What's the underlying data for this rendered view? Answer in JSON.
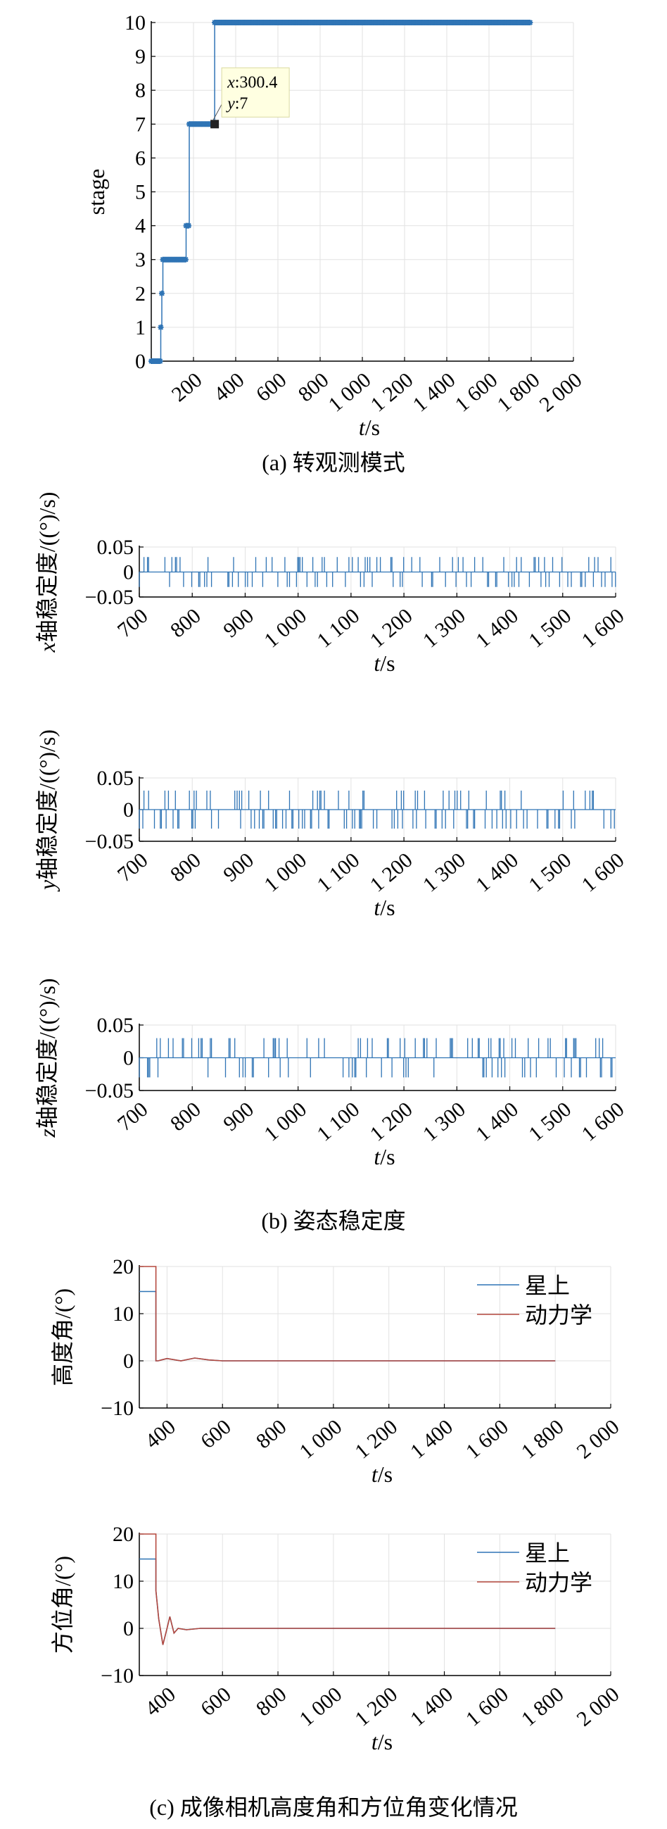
{
  "colors": {
    "blue": "#2f74b5",
    "red": "#b5493f",
    "grid": "#e2e2e2",
    "tooltip_bg": "#ffffe1"
  },
  "chart_data": [
    {
      "id": "stage",
      "type": "line",
      "marker": "asterisk",
      "ylabel": "stage",
      "xlabel": {
        "var": "t",
        "unit": "/s"
      },
      "xlim": [
        0,
        2000
      ],
      "ylim": [
        0,
        10
      ],
      "xticks": [
        "200",
        "400",
        "600",
        "800",
        "1 000",
        "1 200",
        "1 400",
        "1 600",
        "1 800",
        "2 000"
      ],
      "xtick_values": [
        200,
        400,
        600,
        800,
        1000,
        1200,
        1400,
        1600,
        1800,
        2000
      ],
      "yticks": [
        "0",
        "1",
        "2",
        "3",
        "4",
        "5",
        "6",
        "7",
        "8",
        "9",
        "10"
      ],
      "ytick_values": [
        0,
        1,
        2,
        3,
        4,
        5,
        6,
        7,
        8,
        9,
        10
      ],
      "series": [
        {
          "x": [
            0,
            45,
            45,
            50,
            50,
            55,
            55,
            165,
            165,
            180,
            180,
            300.4,
            300.4,
            1800
          ],
          "y": [
            0,
            0,
            1,
            1,
            2,
            2,
            3,
            3,
            4,
            4,
            7,
            7,
            10,
            10
          ]
        }
      ],
      "datatip": {
        "x_label": "x",
        "x_value": "300.4",
        "y_label": "y",
        "y_value": "7",
        "x": 300.4,
        "y": 7
      },
      "grid": true
    },
    {
      "id": "x-stability",
      "type": "line",
      "ylabel": {
        "var": "x",
        "text": "轴稳定度/((°)/s)"
      },
      "xlabel": {
        "var": "t",
        "unit": "/s"
      },
      "xlim": [
        700,
        1600
      ],
      "ylim": [
        -0.05,
        0.05
      ],
      "xticks": [
        "700",
        "800",
        "900",
        "1 000",
        "1 100",
        "1 200",
        "1 300",
        "1 400",
        "1 500",
        "1 600"
      ],
      "xtick_values": [
        700,
        800,
        900,
        1000,
        1100,
        1200,
        1300,
        1400,
        1500,
        1600
      ],
      "yticks": [
        "0.05",
        "0",
        "−0.05"
      ],
      "ytick_values": [
        0.05,
        0,
        -0.05
      ],
      "series": [
        {
          "values_pattern": "random ±0.03 spikes",
          "high": 0.03,
          "low": -0.03,
          "seed": 7
        }
      ],
      "grid": true
    },
    {
      "id": "y-stability",
      "type": "line",
      "ylabel": {
        "var": "y",
        "text": "轴稳定度/((°)/s)"
      },
      "xlabel": {
        "var": "t",
        "unit": "/s"
      },
      "xlim": [
        700,
        1600
      ],
      "ylim": [
        -0.05,
        0.05
      ],
      "xticks": [
        "700",
        "800",
        "900",
        "1 000",
        "1 100",
        "1 200",
        "1 300",
        "1 400",
        "1 500",
        "1 600"
      ],
      "xtick_values": [
        700,
        800,
        900,
        1000,
        1100,
        1200,
        1300,
        1400,
        1500,
        1600
      ],
      "yticks": [
        "0.05",
        "0",
        "−0.05"
      ],
      "ytick_values": [
        0.05,
        0,
        -0.05
      ],
      "series": [
        {
          "values_pattern": "random ±0.03 spikes",
          "high": 0.03,
          "low": -0.03,
          "seed": 13
        }
      ],
      "grid": true
    },
    {
      "id": "z-stability",
      "type": "line",
      "ylabel": {
        "var": "z",
        "text": "轴稳定度/((°)/s)"
      },
      "xlabel": {
        "var": "t",
        "unit": "/s"
      },
      "xlim": [
        700,
        1600
      ],
      "ylim": [
        -0.05,
        0.05
      ],
      "xticks": [
        "700",
        "800",
        "900",
        "1 000",
        "1 100",
        "1 200",
        "1 300",
        "1 400",
        "1 500",
        "1 600"
      ],
      "xtick_values": [
        700,
        800,
        900,
        1000,
        1100,
        1200,
        1300,
        1400,
        1500,
        1600
      ],
      "yticks": [
        "0.05",
        "0",
        "−0.05"
      ],
      "ytick_values": [
        0.05,
        0,
        -0.05
      ],
      "series": [
        {
          "values_pattern": "random ±0.03 spikes",
          "high": 0.03,
          "low": -0.03,
          "seed": 29
        }
      ],
      "grid": true
    },
    {
      "id": "elevation",
      "type": "line",
      "ylabel": "高度角/(°)",
      "xlabel": {
        "var": "t",
        "unit": "/s"
      },
      "xlim": [
        300,
        2000
      ],
      "ylim": [
        -10,
        20
      ],
      "xticks": [
        "400",
        "600",
        "800",
        "1 000",
        "1 200",
        "1 400",
        "1 600",
        "1 800",
        "2 000"
      ],
      "xtick_values": [
        400,
        600,
        800,
        1000,
        1200,
        1400,
        1600,
        1800,
        2000
      ],
      "yticks": [
        "20",
        "10",
        "0",
        "−10"
      ],
      "ytick_values": [
        20,
        10,
        0,
        -10
      ],
      "legend": "top-right",
      "series": [
        {
          "name": "星上",
          "color": "#2f74b5",
          "x": [
            300,
            360,
            360,
            368,
            380,
            400,
            450,
            500,
            550,
            600,
            1800
          ],
          "y": [
            14.7,
            14.7,
            0,
            0,
            0.2,
            0.5,
            0,
            0.6,
            0.2,
            0,
            0
          ]
        },
        {
          "name": "动力学",
          "color": "#b5493f",
          "x": [
            300,
            360,
            360,
            368,
            380,
            400,
            450,
            500,
            550,
            600,
            1800
          ],
          "y": [
            20,
            20,
            0,
            0,
            0.2,
            0.5,
            0,
            0.6,
            0.2,
            0,
            0
          ]
        }
      ],
      "grid": true
    },
    {
      "id": "azimuth",
      "type": "line",
      "ylabel": "方位角/(°)",
      "xlabel": {
        "var": "t",
        "unit": "/s"
      },
      "xlim": [
        300,
        2000
      ],
      "ylim": [
        -10,
        20
      ],
      "xticks": [
        "400",
        "600",
        "800",
        "1 000",
        "1 200",
        "1 400",
        "1 600",
        "1 800",
        "2 000"
      ],
      "xtick_values": [
        400,
        600,
        800,
        1000,
        1200,
        1400,
        1600,
        1800,
        2000
      ],
      "yticks": [
        "20",
        "10",
        "0",
        "−10"
      ],
      "ytick_values": [
        20,
        10,
        0,
        -10
      ],
      "legend": "top-right",
      "series": [
        {
          "name": "星上",
          "color": "#2f74b5",
          "x": [
            300,
            360,
            360,
            370,
            385,
            400,
            410,
            425,
            440,
            470,
            520,
            600,
            1800
          ],
          "y": [
            14.7,
            14.7,
            8,
            2,
            -3.5,
            0,
            2.5,
            -1,
            0,
            -0.3,
            0,
            0,
            0
          ]
        },
        {
          "name": "动力学",
          "color": "#b5493f",
          "x": [
            300,
            360,
            360,
            370,
            385,
            400,
            410,
            425,
            440,
            470,
            520,
            600,
            1800
          ],
          "y": [
            20,
            20,
            8,
            2,
            -3.5,
            0,
            2.5,
            -1,
            0,
            -0.3,
            0,
            0,
            0
          ]
        }
      ],
      "grid": true
    }
  ],
  "captions": {
    "a": "(a) 转观测模式",
    "b": "(b) 姿态稳定度",
    "c": "(c) 成像相机高度角和方位角变化情况"
  }
}
